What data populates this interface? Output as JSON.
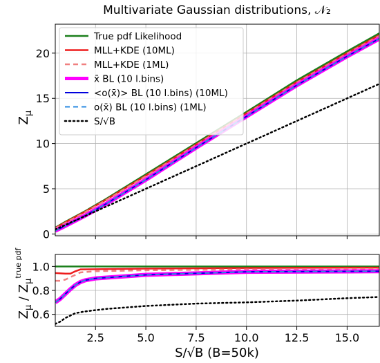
{
  "chart_data": [
    {
      "type": "line",
      "title": "Multivariate Gaussian distributions, 𝒩₂",
      "xlabel": "",
      "ylabel": "Z_μ",
      "xlim": [
        0.5,
        16.6
      ],
      "ylim": [
        -0.2,
        23.2
      ],
      "yticks": [
        "0",
        "5",
        "10",
        "15",
        "20"
      ],
      "grid": true,
      "legend_position": "upper-left",
      "series": [
        {
          "name": "True pdf Likelihood",
          "color": "#1a7f1a",
          "width": 2.5,
          "dash": "",
          "x": [
            0.5,
            1,
            2,
            3,
            5,
            7.5,
            10,
            12.5,
            15,
            16.6
          ],
          "y": [
            0.7,
            1.35,
            2.55,
            3.85,
            6.6,
            10.05,
            13.5,
            17.0,
            20.2,
            22.2
          ]
        },
        {
          "name": "MLL+KDE (10ML)",
          "color": "#ee1c1c",
          "width": 2.5,
          "dash": "",
          "x": [
            0.5,
            1,
            2,
            3,
            5,
            7.5,
            10,
            12.5,
            15,
            16.6
          ],
          "y": [
            0.66,
            1.28,
            2.48,
            3.75,
            6.45,
            9.9,
            13.35,
            16.8,
            20.0,
            22.0
          ]
        },
        {
          "name": "MLL+KDE (1ML)",
          "color": "#f08080",
          "width": 2.5,
          "dash": "7,5",
          "x": [
            0.5,
            1,
            2,
            3,
            5,
            7.5,
            10,
            12.5,
            15,
            16.6
          ],
          "y": [
            0.62,
            1.22,
            2.42,
            3.7,
            6.38,
            9.85,
            13.3,
            16.75,
            19.95,
            21.9
          ]
        },
        {
          "name": "x̄ BL (10 l.bins)",
          "color": "#ff00ff",
          "width": 6,
          "dash": "",
          "x": [
            0.5,
            1,
            2,
            3,
            5,
            7.5,
            10,
            12.5,
            15,
            16.6
          ],
          "y": [
            0.36,
            0.9,
            2.05,
            3.3,
            6.0,
            9.55,
            13.0,
            16.45,
            19.65,
            21.6
          ]
        },
        {
          "name": "<o(x̄)> BL (10 l.bins) (10ML)",
          "color": "#0000dd",
          "width": 2,
          "dash": "",
          "x": [
            0.5,
            1,
            2,
            3,
            5,
            7.5,
            10,
            12.5,
            15,
            16.6
          ],
          "y": [
            0.36,
            0.9,
            2.05,
            3.3,
            6.0,
            9.55,
            13.0,
            16.45,
            19.65,
            21.6
          ]
        },
        {
          "name": "o(x̄) BL (10 l.bins) (1ML)",
          "color": "#2a8ae0",
          "width": 2,
          "dash": "7,5",
          "x": [
            0.5,
            1,
            2,
            3,
            5,
            7.5,
            10,
            12.5,
            15,
            16.6
          ],
          "y": [
            0.36,
            0.9,
            2.05,
            3.3,
            6.0,
            9.55,
            13.0,
            16.45,
            19.65,
            21.6
          ]
        },
        {
          "name": "S/√B",
          "color": "#000000",
          "width": 2.5,
          "dash": "2,4",
          "x": [
            0.5,
            16.6
          ],
          "y": [
            0.5,
            16.6
          ]
        }
      ]
    },
    {
      "type": "line",
      "title": "",
      "xlabel": "S/√B (B=50k)",
      "ylabel": "Z_μ / Z_μ^true pdf",
      "xlim": [
        0.5,
        16.6
      ],
      "ylim": [
        0.5,
        1.1
      ],
      "xticks": [
        "2.5",
        "5.0",
        "7.5",
        "10.0",
        "12.5",
        "15.0"
      ],
      "yticks": [
        "0.6",
        "0.8",
        "1.0"
      ],
      "grid": true,
      "series": [
        {
          "color": "#1a7f1a",
          "width": 2.5,
          "dash": "",
          "x": [
            0.5,
            16.6
          ],
          "y": [
            1.0,
            1.0
          ]
        },
        {
          "color": "#ee1c1c",
          "width": 2.5,
          "dash": "",
          "x": [
            0.5,
            1.0,
            1.25,
            1.5,
            1.75,
            2.5,
            5,
            10,
            16.6
          ],
          "y": [
            0.945,
            0.94,
            0.94,
            0.96,
            0.975,
            0.977,
            0.982,
            0.987,
            0.99
          ]
        },
        {
          "color": "#f08080",
          "width": 2.5,
          "dash": "7,5",
          "x": [
            0.5,
            0.75,
            1.0,
            1.25,
            1.5,
            1.75,
            2.5,
            5,
            10,
            16.6
          ],
          "y": [
            0.88,
            0.88,
            0.89,
            0.91,
            0.93,
            0.95,
            0.96,
            0.968,
            0.975,
            0.98
          ]
        },
        {
          "color": "#ff00ff",
          "width": 6,
          "dash": "",
          "x": [
            0.5,
            0.75,
            1.0,
            1.25,
            1.5,
            1.75,
            2.0,
            2.5,
            5,
            10,
            16.6
          ],
          "y": [
            0.7,
            0.73,
            0.77,
            0.81,
            0.845,
            0.87,
            0.885,
            0.9,
            0.93,
            0.955,
            0.96
          ]
        },
        {
          "color": "#0000dd",
          "width": 2,
          "dash": "",
          "x": [
            0.5,
            0.75,
            1.0,
            1.25,
            1.5,
            1.75,
            2.0,
            2.5,
            5,
            10,
            16.6
          ],
          "y": [
            0.7,
            0.73,
            0.77,
            0.81,
            0.845,
            0.87,
            0.885,
            0.9,
            0.93,
            0.955,
            0.96
          ]
        },
        {
          "color": "#2a8ae0",
          "width": 2,
          "dash": "7,5",
          "x": [
            0.5,
            0.75,
            1.0,
            1.25,
            1.5,
            1.75,
            2.0,
            2.5,
            5,
            10,
            16.6
          ],
          "y": [
            0.7,
            0.73,
            0.77,
            0.81,
            0.845,
            0.87,
            0.885,
            0.9,
            0.93,
            0.955,
            0.96
          ]
        },
        {
          "color": "#000000",
          "width": 2.5,
          "dash": "2,4",
          "x": [
            0.5,
            0.75,
            1.0,
            1.5,
            2.0,
            3,
            5,
            7.5,
            10,
            12.5,
            15,
            16.6
          ],
          "y": [
            0.52,
            0.54,
            0.57,
            0.61,
            0.625,
            0.645,
            0.67,
            0.69,
            0.7,
            0.715,
            0.735,
            0.745
          ]
        }
      ]
    }
  ]
}
